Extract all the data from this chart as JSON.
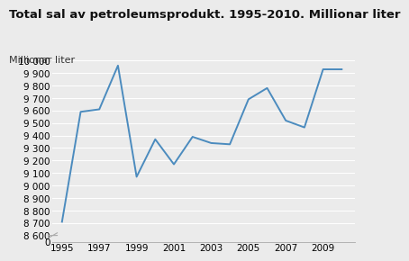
{
  "title": "Total sal av petroleumsprodukt. 1995-2010. Millionar liter",
  "ylabel": "Millionar liter",
  "years": [
    1995,
    1996,
    1997,
    1998,
    1999,
    2000,
    2001,
    2002,
    2003,
    2004,
    2005,
    2006,
    2007,
    2008,
    2009,
    2010
  ],
  "values": [
    8710,
    9590,
    9610,
    9960,
    9070,
    9370,
    9170,
    9390,
    9340,
    9330,
    9690,
    9780,
    9520,
    9465,
    9930,
    9930
  ],
  "line_color": "#4b8bbe",
  "line_width": 1.4,
  "xlim": [
    1994.5,
    2010.7
  ],
  "ylim_main": [
    8600,
    10000
  ],
  "ylim_break": [
    0,
    200
  ],
  "yticks_main": [
    8600,
    8700,
    8800,
    8900,
    9000,
    9100,
    9200,
    9300,
    9400,
    9500,
    9600,
    9700,
    9800,
    9900,
    10000
  ],
  "xticks": [
    1995,
    1997,
    1999,
    2001,
    2003,
    2005,
    2007,
    2009
  ],
  "background_color": "#ebebeb",
  "grid_color": "#ffffff",
  "title_fontsize": 9.5,
  "label_fontsize": 8,
  "tick_fontsize": 7.5
}
